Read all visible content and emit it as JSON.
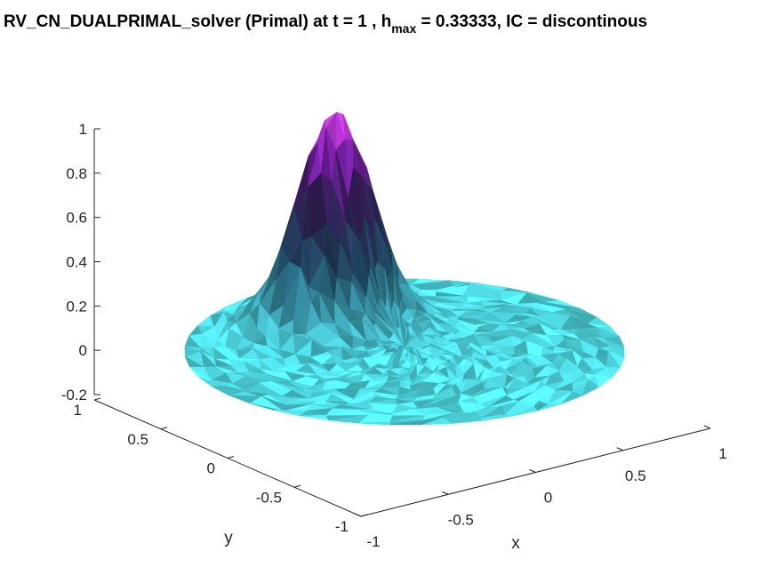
{
  "chart_data": {
    "type": "surface",
    "title_main": "RV_CN_DUALPRIMAL_solver (Primal) at t = 1 , h",
    "title_sub": "max",
    "title_rest": " = 0.33333, IC = discontinous",
    "xlabel": "x",
    "ylabel": "y",
    "zlabel": "",
    "xlim": [
      -1,
      1
    ],
    "ylim": [
      -1,
      1
    ],
    "zlim": [
      -0.2,
      1
    ],
    "x_ticks": [
      "-1",
      "-0.5",
      "0",
      "0.5",
      "1"
    ],
    "y_ticks": [
      "-1",
      "-0.5",
      "0",
      "0.5",
      "1"
    ],
    "z_ticks": [
      "-0.2",
      "0",
      "0.2",
      "0.4",
      "0.6",
      "0.8",
      "1"
    ],
    "domain": "unit disk",
    "peak": {
      "x": -0.05,
      "y": 0.45,
      "z": 0.98
    },
    "peak_width": 0.18,
    "colors": {
      "low": "#4fd8e0",
      "mid": "#1f4b63",
      "dark": "#2a1e4d",
      "high": "#7a1fa8",
      "top": "#c23ad6"
    }
  }
}
